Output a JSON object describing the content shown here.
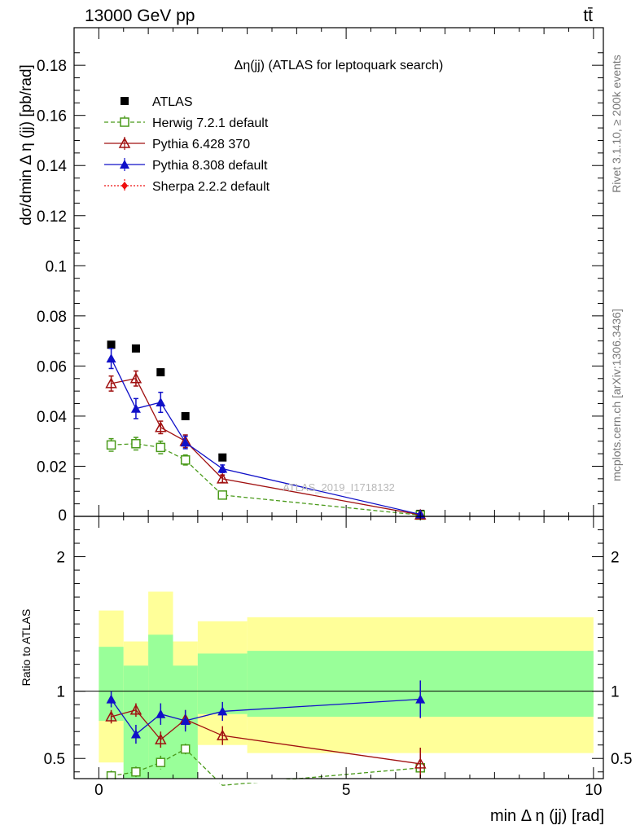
{
  "header": {
    "energy_label": "13000 GeV pp",
    "process_label": "tt̄"
  },
  "side_text": {
    "rivet": "Rivet 3.1.10, ≥ 200k events",
    "mcplots": "mcplots.cern.ch [arXiv:1306.3436]"
  },
  "watermark": "ATLAS_2019_I1718132",
  "chart_data": [
    {
      "type": "scatter",
      "title": "Δη(jj) (ATLAS for leptoquark search)",
      "xlabel": "min Δ η (jj) [rad]",
      "ylabel": "dσ/dmin Δ η (jj) [pb/rad]",
      "xlim": [
        -0.5,
        10.2
      ],
      "ylim": [
        0,
        0.195
      ],
      "yticks": [
        0.02,
        0.04,
        0.06,
        0.08,
        0.1,
        0.12,
        0.14,
        0.16,
        0.18
      ],
      "ytick_labels": [
        "0.02",
        "0.04",
        "0.06",
        "0.08",
        "0.1",
        "0.12",
        "0.14",
        "0.16",
        "0.18"
      ],
      "bottom_tick_label": "0",
      "legend_position": "top-left",
      "series": [
        {
          "name": "ATLAS",
          "color": "#000000",
          "marker": "square-filled",
          "line": "none",
          "x": [
            0.25,
            0.75,
            1.25,
            1.75,
            2.5,
            6.5
          ],
          "y": [
            0.0685,
            0.067,
            0.0575,
            0.04,
            0.0235,
            0.001
          ],
          "yerr": [
            0,
            0,
            0,
            0,
            0,
            0
          ]
        },
        {
          "name": "Herwig 7.2.1 default",
          "color": "#4a9a1a",
          "marker": "square-open",
          "line": "dashed",
          "x": [
            0.25,
            0.75,
            1.25,
            1.75,
            2.5,
            6.5
          ],
          "y": [
            0.0285,
            0.029,
            0.0275,
            0.0225,
            0.0085,
            0.0005
          ],
          "yerr": [
            0.0025,
            0.0025,
            0.0025,
            0.002,
            0.001,
            0.0002
          ]
        },
        {
          "name": "Pythia 6.428 370",
          "color": "#a01010",
          "marker": "triangle-open",
          "line": "solid",
          "x": [
            0.25,
            0.75,
            1.25,
            1.75,
            2.5,
            6.5
          ],
          "y": [
            0.053,
            0.055,
            0.0355,
            0.03,
            0.015,
            0.0006
          ],
          "yerr": [
            0.003,
            0.003,
            0.0025,
            0.0025,
            0.0015,
            0.0003
          ]
        },
        {
          "name": "Pythia 8.308 default",
          "color": "#1010c8",
          "marker": "triangle-filled",
          "line": "solid",
          "x": [
            0.25,
            0.75,
            1.25,
            1.75,
            2.5,
            6.5
          ],
          "y": [
            0.063,
            0.043,
            0.0455,
            0.0295,
            0.019,
            0.0008
          ],
          "yerr": [
            0.004,
            0.004,
            0.004,
            0.0025,
            0.0015,
            0.0003
          ]
        },
        {
          "name": "Sherpa 2.2.2 default",
          "color": "#ee1010",
          "marker": "diamond-filled",
          "line": "dotted",
          "x": [],
          "y": [],
          "yerr": []
        }
      ]
    },
    {
      "type": "scatter",
      "ylabel": "Ratio to ATLAS",
      "xlabel": "min Δ η (jj) [rad]",
      "xlim": [
        -0.5,
        10.2
      ],
      "ylim": [
        0.35,
        2.3
      ],
      "yticks": [
        0.5,
        1,
        2
      ],
      "ytick_labels": [
        "0.5",
        "1",
        "2"
      ],
      "xticks": [
        0,
        5,
        10
      ],
      "xtick_labels": [
        "0",
        "5",
        "10"
      ],
      "reference_line": 1,
      "bands": [
        {
          "x0": 0.0,
          "x1": 0.5,
          "yellow": [
            0.47,
            1.6
          ],
          "green": [
            0.78,
            1.33
          ]
        },
        {
          "x0": 0.5,
          "x1": 1.0,
          "yellow": [
            0.35,
            1.37
          ],
          "green": [
            0.35,
            1.19
          ]
        },
        {
          "x0": 1.0,
          "x1": 1.5,
          "yellow": [
            0.35,
            1.74
          ],
          "green": [
            0.35,
            1.42
          ]
        },
        {
          "x0": 1.5,
          "x1": 2.0,
          "yellow": [
            0.35,
            1.37
          ],
          "green": [
            0.35,
            1.19
          ]
        },
        {
          "x0": 2.0,
          "x1": 3.0,
          "yellow": [
            0.6,
            1.52
          ],
          "green": [
            0.83,
            1.28
          ]
        },
        {
          "x0": 3.0,
          "x1": 10.0,
          "yellow": [
            0.54,
            1.55
          ],
          "green": [
            0.81,
            1.3
          ]
        }
      ],
      "series": [
        {
          "name": "Herwig 7.2.1 default",
          "x": [
            0.25,
            0.75,
            1.25,
            1.75,
            2.5,
            6.5
          ],
          "y": [
            0.37,
            0.4,
            0.47,
            0.57,
            0.3,
            0.43
          ],
          "yerr": [
            0.04,
            0.04,
            0.05,
            0.04,
            0.03,
            0.15
          ]
        },
        {
          "name": "Pythia 6.428 370",
          "x": [
            0.25,
            0.75,
            1.25,
            1.75,
            2.5,
            6.5
          ],
          "y": [
            0.81,
            0.86,
            0.64,
            0.79,
            0.67,
            0.46
          ],
          "yerr": [
            0.05,
            0.05,
            0.06,
            0.07,
            0.07,
            0.12
          ]
        },
        {
          "name": "Pythia 8.308 default",
          "x": [
            0.25,
            0.75,
            1.25,
            1.75,
            2.5,
            6.5
          ],
          "y": [
            0.94,
            0.68,
            0.83,
            0.78,
            0.85,
            0.94
          ],
          "yerr": [
            0.06,
            0.07,
            0.08,
            0.08,
            0.07,
            0.14
          ]
        }
      ]
    }
  ]
}
